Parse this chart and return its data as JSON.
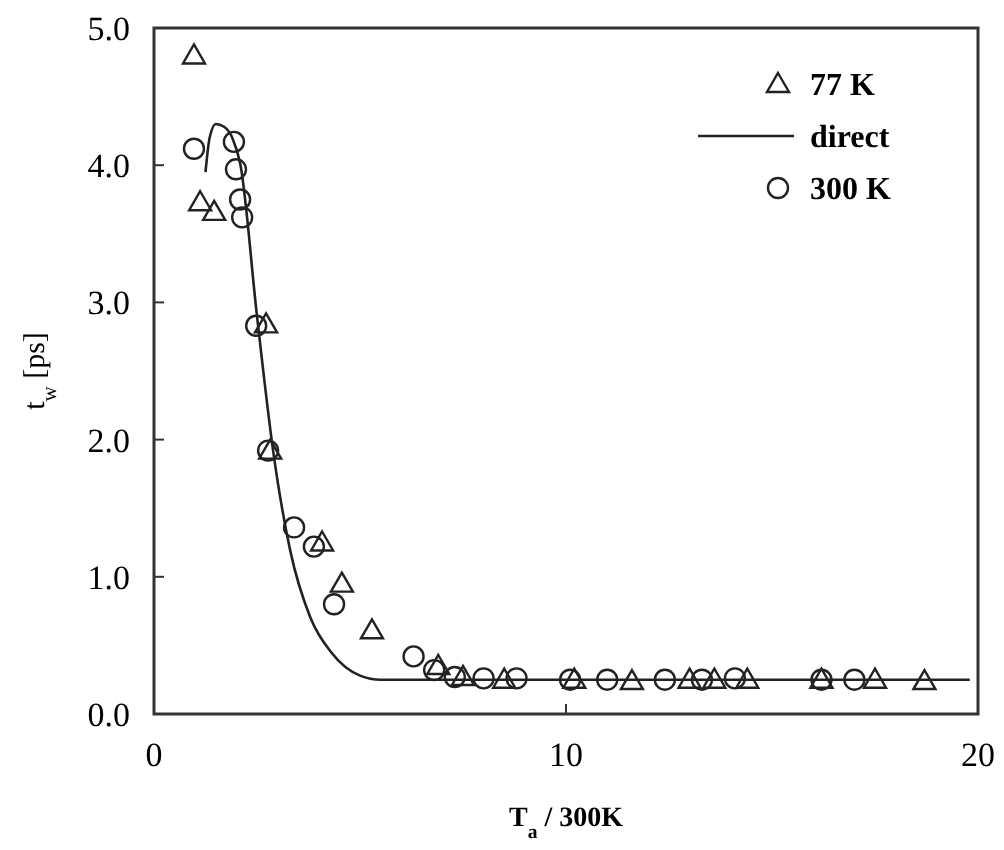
{
  "chart_data": {
    "type": "scatter",
    "xlabel": "T$_{a}$ / 300K",
    "ylabel": "t$_{w}$ [ps]",
    "xlim": [
      0,
      20
    ],
    "ylim": [
      0,
      5
    ],
    "xticks": [
      0,
      10,
      20
    ],
    "yticks": [
      {
        "value": 0,
        "label": "0.0"
      },
      {
        "value": 1,
        "label": "1.0"
      },
      {
        "value": 2,
        "label": "2.0"
      },
      {
        "value": 3,
        "label": "3.0"
      },
      {
        "value": 4,
        "label": "4.0"
      },
      {
        "value": 5,
        "label": "5.0"
      }
    ],
    "grid": false,
    "legend": "top right",
    "series": [
      {
        "name": "77 K",
        "color": "#222222",
        "marker": "triangle",
        "x": [
          0.97,
          1.12,
          1.46,
          2.72,
          2.82,
          4.08,
          4.56,
          5.29,
          6.9,
          7.5,
          8.5,
          10.2,
          11.6,
          13.0,
          13.6,
          14.4,
          16.2,
          17.5,
          18.7
        ],
        "values": [
          4.8,
          3.73,
          3.66,
          2.84,
          1.92,
          1.25,
          0.95,
          0.61,
          0.35,
          0.27,
          0.25,
          0.25,
          0.24,
          0.25,
          0.25,
          0.25,
          0.25,
          0.25,
          0.24
        ]
      },
      {
        "name": "direct",
        "type": "line",
        "color": "#222222",
        "marker": "none",
        "x": [
          1.25,
          1.35,
          1.5,
          1.7,
          1.9,
          2.1,
          2.5,
          2.9,
          3.3,
          3.8,
          4.3,
          5.0,
          5.5,
          19.8
        ],
        "values": [
          3.95,
          4.2,
          4.3,
          4.28,
          4.2,
          4.0,
          2.9,
          1.9,
          1.2,
          0.7,
          0.45,
          0.28,
          0.25,
          0.25
        ]
      },
      {
        "name": "300 K",
        "color": "#222222",
        "marker": "circle",
        "x": [
          0.97,
          1.94,
          1.99,
          2.09,
          2.14,
          2.48,
          2.77,
          3.4,
          3.88,
          4.37,
          6.3,
          6.8,
          7.3,
          8.0,
          8.8,
          10.1,
          11.0,
          12.4,
          13.3,
          14.1,
          16.2,
          17.0
        ],
        "values": [
          4.12,
          4.17,
          3.97,
          3.75,
          3.62,
          2.83,
          1.92,
          1.36,
          1.22,
          0.8,
          0.42,
          0.32,
          0.27,
          0.26,
          0.26,
          0.25,
          0.25,
          0.25,
          0.25,
          0.26,
          0.25,
          0.25
        ]
      }
    ]
  }
}
